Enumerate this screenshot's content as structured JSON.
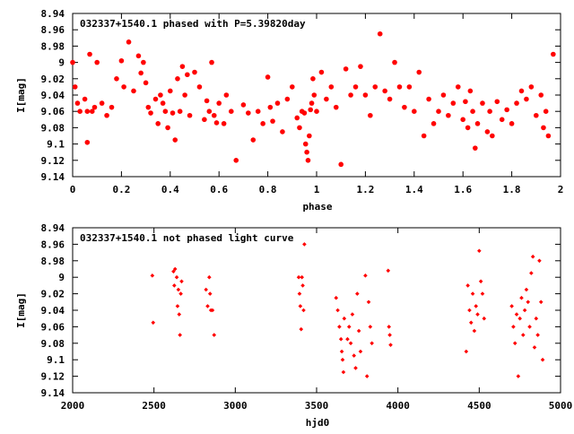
{
  "chart_data": [
    {
      "type": "scatter",
      "title": "032337+1540.1 phased with P=5.39820day",
      "xlabel": "phase",
      "ylabel": "I[mag]",
      "xlim": [
        0,
        2
      ],
      "ylim": [
        8.94,
        9.14
      ],
      "y_inverted": true,
      "x_ticks": [
        0,
        0.2,
        0.4,
        0.6,
        0.8,
        1,
        1.2,
        1.4,
        1.6,
        1.8,
        2
      ],
      "x_tick_labels": [
        "0",
        "0.2",
        "0.4",
        "0.6",
        "0.8",
        "1",
        "1.2",
        "1.4",
        "1.6",
        "1.8",
        "2"
      ],
      "y_ticks": [
        8.94,
        8.96,
        8.98,
        9.0,
        9.02,
        9.04,
        9.06,
        9.08,
        9.1,
        9.12,
        9.14
      ],
      "y_tick_labels": [
        "8.94",
        "8.96",
        "8.98",
        "9",
        "9.02",
        "9.04",
        "9.06",
        "9.08",
        "9.1",
        "9.12",
        "9.14"
      ],
      "marker": "filled-circle",
      "color": "#ff0000",
      "points": [
        [
          0.0,
          9.0
        ],
        [
          0.01,
          9.03
        ],
        [
          0.02,
          9.05
        ],
        [
          0.03,
          9.06
        ],
        [
          0.05,
          9.045
        ],
        [
          0.06,
          9.06
        ],
        [
          0.07,
          8.99
        ],
        [
          0.08,
          9.06
        ],
        [
          0.09,
          9.055
        ],
        [
          0.1,
          9.0
        ],
        [
          0.06,
          9.098
        ],
        [
          0.12,
          9.05
        ],
        [
          0.14,
          9.065
        ],
        [
          0.16,
          9.055
        ],
        [
          0.18,
          9.02
        ],
        [
          0.2,
          8.998
        ],
        [
          0.21,
          9.03
        ],
        [
          0.23,
          8.975
        ],
        [
          0.25,
          9.035
        ],
        [
          0.27,
          8.992
        ],
        [
          0.28,
          9.013
        ],
        [
          0.29,
          9.0
        ],
        [
          0.3,
          9.025
        ],
        [
          0.31,
          9.055
        ],
        [
          0.32,
          9.062
        ],
        [
          0.34,
          9.045
        ],
        [
          0.35,
          9.075
        ],
        [
          0.36,
          9.04
        ],
        [
          0.37,
          9.05
        ],
        [
          0.38,
          9.06
        ],
        [
          0.39,
          9.08
        ],
        [
          0.4,
          9.035
        ],
        [
          0.41,
          9.062
        ],
        [
          0.42,
          9.095
        ],
        [
          0.43,
          9.02
        ],
        [
          0.44,
          9.06
        ],
        [
          0.45,
          9.005
        ],
        [
          0.46,
          9.04
        ],
        [
          0.47,
          9.015
        ],
        [
          0.48,
          9.065
        ],
        [
          0.5,
          9.012
        ],
        [
          0.52,
          9.03
        ],
        [
          0.54,
          9.07
        ],
        [
          0.55,
          9.047
        ],
        [
          0.56,
          9.06
        ],
        [
          0.57,
          9.0
        ],
        [
          0.58,
          9.065
        ],
        [
          0.59,
          9.074
        ],
        [
          0.6,
          9.05
        ],
        [
          0.62,
          9.075
        ],
        [
          0.63,
          9.04
        ],
        [
          0.65,
          9.06
        ],
        [
          0.67,
          9.12
        ],
        [
          0.7,
          9.052
        ],
        [
          0.72,
          9.062
        ],
        [
          0.74,
          9.095
        ],
        [
          0.76,
          9.06
        ],
        [
          0.78,
          9.075
        ],
        [
          0.8,
          9.018
        ],
        [
          0.81,
          9.055
        ],
        [
          0.82,
          9.072
        ],
        [
          0.84,
          9.05
        ],
        [
          0.86,
          9.085
        ],
        [
          0.88,
          9.045
        ],
        [
          0.9,
          9.03
        ],
        [
          0.92,
          9.068
        ],
        [
          0.93,
          9.08
        ],
        [
          0.94,
          9.06
        ],
        [
          0.95,
          9.062
        ],
        [
          0.955,
          9.1
        ],
        [
          0.96,
          9.11
        ],
        [
          0.965,
          9.12
        ],
        [
          0.97,
          9.09
        ],
        [
          0.975,
          9.058
        ],
        [
          0.98,
          9.05
        ],
        [
          0.985,
          9.02
        ],
        [
          0.99,
          9.04
        ],
        [
          1.0,
          9.06
        ],
        [
          1.02,
          9.012
        ],
        [
          1.04,
          9.045
        ],
        [
          1.06,
          9.03
        ],
        [
          1.08,
          9.055
        ],
        [
          1.1,
          9.125
        ],
        [
          1.12,
          9.008
        ],
        [
          1.14,
          9.04
        ],
        [
          1.16,
          9.03
        ],
        [
          1.18,
          9.005
        ],
        [
          1.2,
          9.04
        ],
        [
          1.22,
          9.065
        ],
        [
          1.24,
          9.03
        ],
        [
          1.26,
          8.965
        ],
        [
          1.28,
          9.035
        ],
        [
          1.3,
          9.045
        ],
        [
          1.32,
          9.0
        ],
        [
          1.34,
          9.03
        ],
        [
          1.36,
          9.055
        ],
        [
          1.38,
          9.03
        ],
        [
          1.4,
          9.06
        ],
        [
          1.42,
          9.012
        ],
        [
          1.44,
          9.09
        ],
        [
          1.46,
          9.045
        ],
        [
          1.48,
          9.075
        ],
        [
          1.5,
          9.06
        ],
        [
          1.52,
          9.04
        ],
        [
          1.54,
          9.065
        ],
        [
          1.56,
          9.05
        ],
        [
          1.58,
          9.03
        ],
        [
          1.6,
          9.07
        ],
        [
          1.61,
          9.048
        ],
        [
          1.62,
          9.08
        ],
        [
          1.63,
          9.035
        ],
        [
          1.64,
          9.06
        ],
        [
          1.65,
          9.105
        ],
        [
          1.66,
          9.075
        ],
        [
          1.68,
          9.05
        ],
        [
          1.7,
          9.085
        ],
        [
          1.71,
          9.06
        ],
        [
          1.72,
          9.09
        ],
        [
          1.74,
          9.048
        ],
        [
          1.76,
          9.07
        ],
        [
          1.78,
          9.058
        ],
        [
          1.8,
          9.075
        ],
        [
          1.82,
          9.05
        ],
        [
          1.84,
          9.035
        ],
        [
          1.86,
          9.045
        ],
        [
          1.88,
          9.03
        ],
        [
          1.9,
          9.065
        ],
        [
          1.92,
          9.04
        ],
        [
          1.93,
          9.08
        ],
        [
          1.94,
          9.06
        ],
        [
          1.95,
          9.09
        ],
        [
          1.97,
          8.99
        ]
      ]
    },
    {
      "type": "scatter",
      "title": "032337+1540.1 not phased light curve",
      "xlabel": "hjd0",
      "ylabel": "I[mag]",
      "xlim": [
        2000,
        5000
      ],
      "ylim": [
        8.94,
        9.14
      ],
      "y_inverted": true,
      "x_ticks": [
        2000,
        2500,
        3000,
        3500,
        4000,
        4500,
        5000
      ],
      "x_tick_labels": [
        "2000",
        "2500",
        "3000",
        "3500",
        "4000",
        "4500",
        "5000"
      ],
      "y_ticks": [
        8.94,
        8.96,
        8.98,
        9.0,
        9.02,
        9.04,
        9.06,
        9.08,
        9.1,
        9.12,
        9.14
      ],
      "y_tick_labels": [
        "8.94",
        "8.96",
        "8.98",
        "9",
        "9.02",
        "9.04",
        "9.06",
        "9.08",
        "9.1",
        "9.12",
        "9.14"
      ],
      "marker": "small-diamond",
      "color": "#ff0000",
      "points": [
        [
          2490,
          8.998
        ],
        [
          2495,
          9.055
        ],
        [
          2620,
          8.993
        ],
        [
          2625,
          9.01
        ],
        [
          2630,
          8.99
        ],
        [
          2640,
          9.0
        ],
        [
          2645,
          9.035
        ],
        [
          2650,
          9.015
        ],
        [
          2655,
          9.045
        ],
        [
          2660,
          9.07
        ],
        [
          2665,
          9.02
        ],
        [
          2670,
          9.005
        ],
        [
          2820,
          9.015
        ],
        [
          2830,
          9.035
        ],
        [
          2840,
          9.0
        ],
        [
          2845,
          9.02
        ],
        [
          2850,
          9.04
        ],
        [
          2860,
          9.04
        ],
        [
          2870,
          9.07
        ],
        [
          3390,
          9.0
        ],
        [
          3395,
          9.02
        ],
        [
          3400,
          9.035
        ],
        [
          3405,
          9.063
        ],
        [
          3410,
          9.0
        ],
        [
          3415,
          9.01
        ],
        [
          3420,
          9.04
        ],
        [
          3425,
          8.96
        ],
        [
          3620,
          9.025
        ],
        [
          3630,
          9.04
        ],
        [
          3640,
          9.06
        ],
        [
          3650,
          9.075
        ],
        [
          3655,
          9.09
        ],
        [
          3660,
          9.1
        ],
        [
          3665,
          9.115
        ],
        [
          3670,
          9.05
        ],
        [
          3690,
          9.075
        ],
        [
          3700,
          9.06
        ],
        [
          3710,
          9.08
        ],
        [
          3720,
          9.045
        ],
        [
          3730,
          9.095
        ],
        [
          3740,
          9.11
        ],
        [
          3750,
          9.02
        ],
        [
          3760,
          9.065
        ],
        [
          3770,
          9.09
        ],
        [
          3800,
          8.998
        ],
        [
          3810,
          9.12
        ],
        [
          3820,
          9.03
        ],
        [
          3830,
          9.06
        ],
        [
          3840,
          9.08
        ],
        [
          3940,
          8.992
        ],
        [
          3945,
          9.06
        ],
        [
          3950,
          9.07
        ],
        [
          3955,
          9.082
        ],
        [
          4420,
          9.09
        ],
        [
          4430,
          9.01
        ],
        [
          4440,
          9.04
        ],
        [
          4450,
          9.055
        ],
        [
          4460,
          9.02
        ],
        [
          4470,
          9.065
        ],
        [
          4480,
          9.035
        ],
        [
          4490,
          9.045
        ],
        [
          4500,
          8.968
        ],
        [
          4510,
          9.005
        ],
        [
          4520,
          9.02
        ],
        [
          4530,
          9.05
        ],
        [
          4700,
          9.035
        ],
        [
          4710,
          9.06
        ],
        [
          4720,
          9.08
        ],
        [
          4730,
          9.045
        ],
        [
          4740,
          9.12
        ],
        [
          4750,
          9.05
        ],
        [
          4760,
          9.025
        ],
        [
          4770,
          9.07
        ],
        [
          4780,
          9.04
        ],
        [
          4790,
          9.015
        ],
        [
          4800,
          9.03
        ],
        [
          4810,
          9.06
        ],
        [
          4820,
          8.995
        ],
        [
          4830,
          8.975
        ],
        [
          4840,
          9.085
        ],
        [
          4850,
          9.05
        ],
        [
          4860,
          9.07
        ],
        [
          4870,
          8.98
        ],
        [
          4880,
          9.03
        ],
        [
          4890,
          9.1
        ]
      ]
    }
  ]
}
